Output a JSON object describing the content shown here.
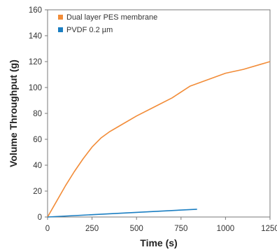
{
  "chart_data": {
    "type": "line",
    "title": "",
    "xlabel": "Time (s)",
    "ylabel": "Volume Throughput (g)",
    "xlim": [
      0,
      1250
    ],
    "ylim": [
      0,
      160
    ],
    "x_ticks": [
      "0",
      "250",
      "500",
      "750",
      "1000",
      "1250"
    ],
    "y_ticks": [
      "0",
      "20",
      "40",
      "60",
      "80",
      "100",
      "120",
      "140",
      "160"
    ],
    "grid": false,
    "legend_position": "top-left",
    "series": [
      {
        "name": "Dual layer PES membrane",
        "color": "#f28c38",
        "x": [
          0,
          50,
          100,
          150,
          200,
          250,
          300,
          350,
          400,
          500,
          600,
          700,
          800,
          900,
          1000,
          1100,
          1200,
          1250
        ],
        "y": [
          0,
          12,
          24,
          35,
          45,
          54,
          61,
          66,
          70,
          78,
          85,
          92,
          101,
          106,
          111,
          114,
          118,
          120
        ]
      },
      {
        "name": "PVDF 0.2 µm",
        "color": "#1a7ec2",
        "x": [
          0,
          840
        ],
        "y": [
          0,
          6
        ]
      }
    ]
  }
}
